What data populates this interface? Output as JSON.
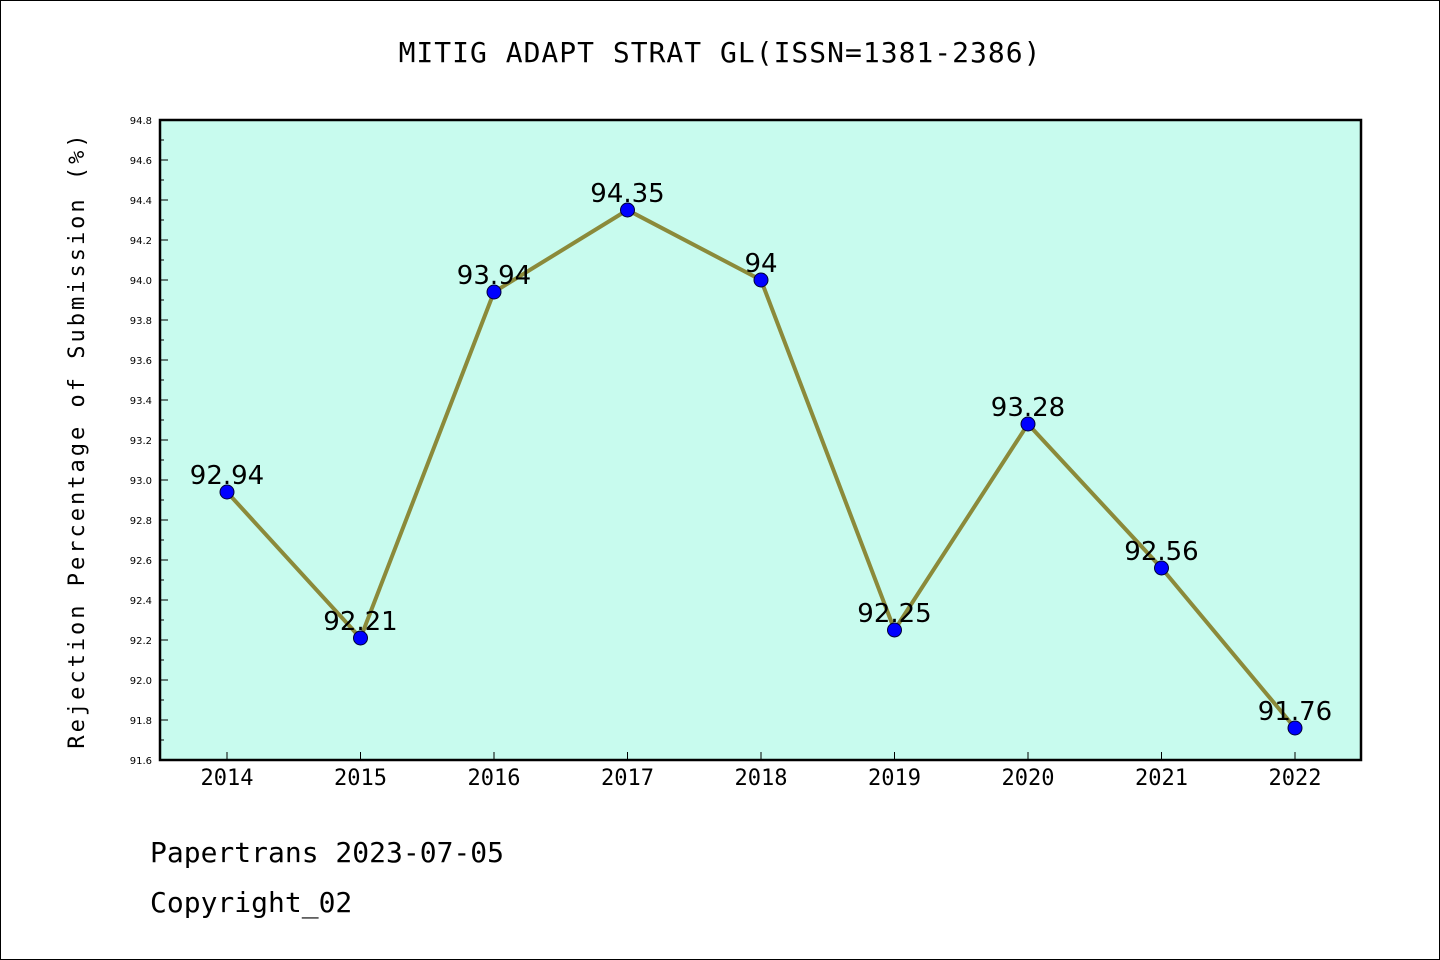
{
  "chart_data": {
    "type": "line",
    "title": "MITIG ADAPT STRAT GL(ISSN=1381-2386)",
    "xlabel": "",
    "ylabel": "Rejection Percentage of Submission (%)",
    "categories": [
      "2014",
      "2015",
      "2016",
      "2017",
      "2018",
      "2019",
      "2020",
      "2021",
      "2022"
    ],
    "values": [
      92.94,
      92.21,
      93.94,
      94.35,
      94.0,
      92.25,
      93.28,
      92.56,
      91.76
    ],
    "data_labels": [
      "92.94",
      "92.21",
      "93.94",
      "94.35",
      "94",
      "92.25",
      "93.28",
      "92.56",
      "91.76"
    ],
    "ylim": [
      91.6,
      94.8
    ],
    "yticks": [
      "91.6",
      "91.8",
      "92.0",
      "92.2",
      "92.4",
      "92.6",
      "92.8",
      "93.0",
      "93.2",
      "93.4",
      "93.6",
      "93.8",
      "94.0",
      "94.2",
      "94.4",
      "94.6",
      "94.8"
    ],
    "grid": false,
    "legend": "none",
    "colors": {
      "plot_background": "#c8fbee",
      "line": "#8b8a3a",
      "marker": "#0000ff"
    }
  },
  "footer": {
    "line1": "Papertrans 2023-07-05",
    "line2": "Copyright_02"
  }
}
